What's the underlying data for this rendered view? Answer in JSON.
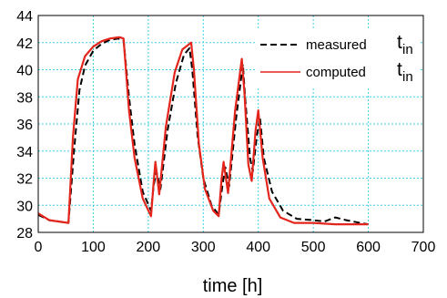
{
  "chart_data": {
    "type": "line",
    "xlabel": "time [h]",
    "ylabel": "",
    "xlim": [
      0,
      700
    ],
    "ylim": [
      28,
      44
    ],
    "xticks": [
      0,
      100,
      200,
      300,
      400,
      500,
      600,
      700
    ],
    "yticks": [
      28,
      30,
      32,
      34,
      36,
      38,
      40,
      42,
      44
    ],
    "grid": true,
    "legend_position": "top-right",
    "series": [
      {
        "name": "measured",
        "symbol": "t",
        "subscript": "in",
        "color": "#000000",
        "style": "dashed",
        "points": [
          [
            0,
            29.3
          ],
          [
            20,
            28.9
          ],
          [
            55,
            28.7
          ],
          [
            65,
            34
          ],
          [
            75,
            38.5
          ],
          [
            85,
            40.3
          ],
          [
            100,
            41.4
          ],
          [
            115,
            41.9
          ],
          [
            130,
            42.2
          ],
          [
            145,
            42.3
          ],
          [
            155,
            42.2
          ],
          [
            165,
            38
          ],
          [
            175,
            34.5
          ],
          [
            190,
            31
          ],
          [
            205,
            29.6
          ],
          [
            210,
            31.5
          ],
          [
            215,
            32.5
          ],
          [
            222,
            31.2
          ],
          [
            235,
            35.5
          ],
          [
            250,
            39
          ],
          [
            265,
            41.1
          ],
          [
            275,
            41.6
          ],
          [
            280,
            40
          ],
          [
            290,
            35
          ],
          [
            300,
            32
          ],
          [
            315,
            30
          ],
          [
            328,
            29.3
          ],
          [
            335,
            31.5
          ],
          [
            340,
            32.8
          ],
          [
            347,
            31.4
          ],
          [
            360,
            36.5
          ],
          [
            372,
            40.4
          ],
          [
            376,
            38
          ],
          [
            385,
            33.5
          ],
          [
            390,
            32.5
          ],
          [
            397,
            35
          ],
          [
            403,
            36.5
          ],
          [
            410,
            33.5
          ],
          [
            425,
            31
          ],
          [
            445,
            29.6
          ],
          [
            470,
            29
          ],
          [
            500,
            28.9
          ],
          [
            520,
            28.8
          ],
          [
            540,
            29.1
          ],
          [
            560,
            28.9
          ],
          [
            585,
            28.7
          ],
          [
            600,
            28.6
          ]
        ]
      },
      {
        "name": "computed",
        "symbol": "t",
        "subscript": "in",
        "color": "#e4251b",
        "style": "solid",
        "points": [
          [
            0,
            29.4
          ],
          [
            20,
            28.9
          ],
          [
            55,
            28.7
          ],
          [
            63,
            35
          ],
          [
            72,
            39.3
          ],
          [
            85,
            41
          ],
          [
            100,
            41.7
          ],
          [
            115,
            42.1
          ],
          [
            130,
            42.3
          ],
          [
            148,
            42.4
          ],
          [
            155,
            42.3
          ],
          [
            165,
            37
          ],
          [
            175,
            33.5
          ],
          [
            190,
            30.5
          ],
          [
            205,
            29.2
          ],
          [
            210,
            31.8
          ],
          [
            213,
            33.2
          ],
          [
            220,
            30.8
          ],
          [
            232,
            35.8
          ],
          [
            248,
            39.8
          ],
          [
            262,
            41.5
          ],
          [
            278,
            42
          ],
          [
            283,
            40
          ],
          [
            292,
            34.5
          ],
          [
            303,
            31.2
          ],
          [
            318,
            29.6
          ],
          [
            328,
            29.2
          ],
          [
            333,
            31.8
          ],
          [
            337,
            33.2
          ],
          [
            345,
            30.9
          ],
          [
            358,
            37
          ],
          [
            370,
            40.8
          ],
          [
            375,
            38.2
          ],
          [
            382,
            33
          ],
          [
            388,
            31.8
          ],
          [
            395,
            35.5
          ],
          [
            400,
            37
          ],
          [
            408,
            33.5
          ],
          [
            420,
            30.5
          ],
          [
            440,
            29.1
          ],
          [
            465,
            28.7
          ],
          [
            500,
            28.7
          ],
          [
            540,
            28.6
          ],
          [
            600,
            28.6
          ]
        ]
      }
    ]
  }
}
